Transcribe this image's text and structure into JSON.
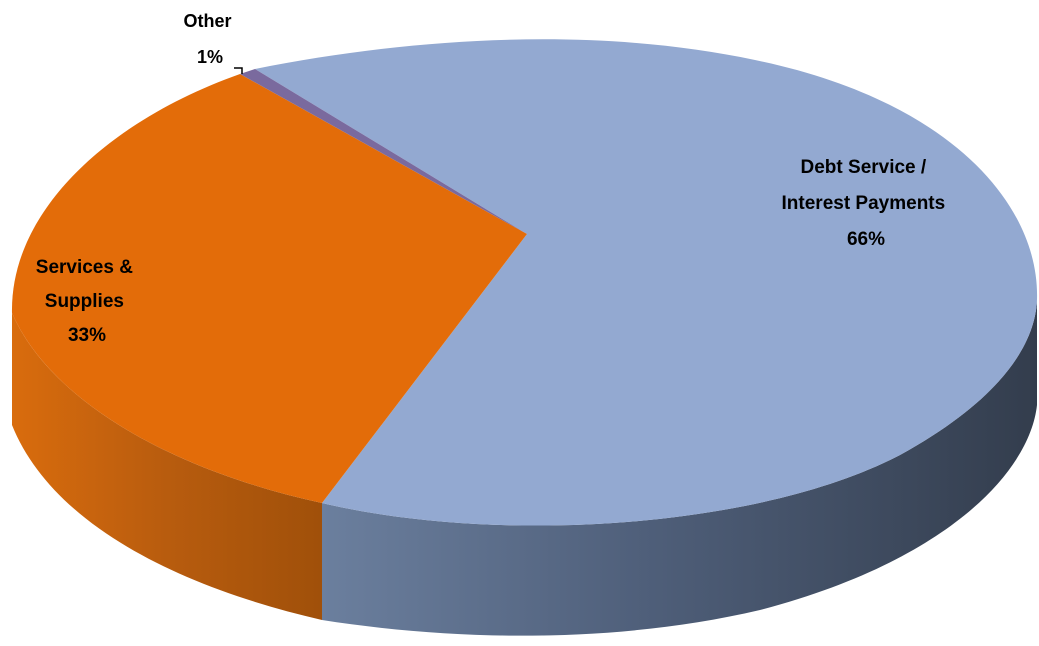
{
  "chart_data": {
    "type": "pie",
    "three_d": true,
    "title": "",
    "slices": [
      {
        "id": "debt",
        "lines": [
          "Debt Service /",
          "Interest Payments",
          "66%"
        ],
        "value": 66,
        "color": "#93a9d1"
      },
      {
        "id": "services",
        "lines": [
          "Services &",
          "Supplies",
          "33%"
        ],
        "value": 33,
        "color": "#e36c09"
      },
      {
        "id": "other",
        "lines": [
          "Other",
          "1%"
        ],
        "value": 1,
        "color": "#7a6a9e"
      }
    ]
  }
}
